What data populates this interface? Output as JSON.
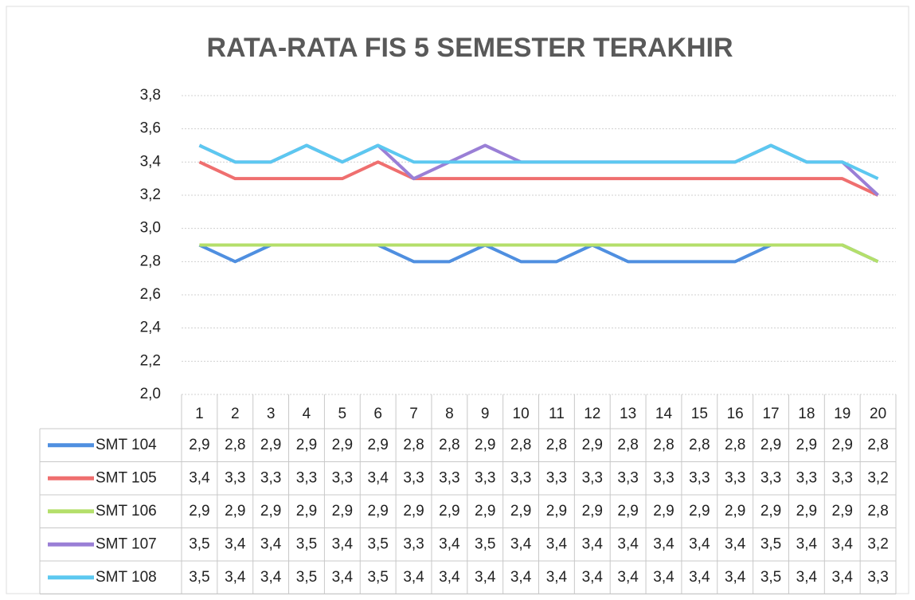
{
  "chart_data": {
    "type": "line",
    "title": "RATA-RATA FIS 5 SEMESTER TERAKHIR",
    "categories": [
      "1",
      "2",
      "3",
      "4",
      "5",
      "6",
      "7",
      "8",
      "9",
      "10",
      "11",
      "12",
      "13",
      "14",
      "15",
      "16",
      "17",
      "18",
      "19",
      "20"
    ],
    "series": [
      {
        "name": "SMT 104",
        "color": "#4f8fe0",
        "values": [
          2.9,
          2.8,
          2.9,
          2.9,
          2.9,
          2.9,
          2.8,
          2.8,
          2.9,
          2.8,
          2.8,
          2.9,
          2.8,
          2.8,
          2.8,
          2.8,
          2.9,
          2.9,
          2.9,
          2.8
        ],
        "value_labels": [
          "2,9",
          "2,8",
          "2,9",
          "2,9",
          "2,9",
          "2,9",
          "2,8",
          "2,8",
          "2,9",
          "2,8",
          "2,8",
          "2,9",
          "2,8",
          "2,8",
          "2,8",
          "2,8",
          "2,9",
          "2,9",
          "2,9",
          "2,8"
        ]
      },
      {
        "name": "SMT 105",
        "color": "#ef6f6f",
        "values": [
          3.4,
          3.3,
          3.3,
          3.3,
          3.3,
          3.4,
          3.3,
          3.3,
          3.3,
          3.3,
          3.3,
          3.3,
          3.3,
          3.3,
          3.3,
          3.3,
          3.3,
          3.3,
          3.3,
          3.2
        ],
        "value_labels": [
          "3,4",
          "3,3",
          "3,3",
          "3,3",
          "3,3",
          "3,4",
          "3,3",
          "3,3",
          "3,3",
          "3,3",
          "3,3",
          "3,3",
          "3,3",
          "3,3",
          "3,3",
          "3,3",
          "3,3",
          "3,3",
          "3,3",
          "3,2"
        ]
      },
      {
        "name": "SMT 106",
        "color": "#b4df6a",
        "values": [
          2.9,
          2.9,
          2.9,
          2.9,
          2.9,
          2.9,
          2.9,
          2.9,
          2.9,
          2.9,
          2.9,
          2.9,
          2.9,
          2.9,
          2.9,
          2.9,
          2.9,
          2.9,
          2.9,
          2.8
        ],
        "value_labels": [
          "2,9",
          "2,9",
          "2,9",
          "2,9",
          "2,9",
          "2,9",
          "2,9",
          "2,9",
          "2,9",
          "2,9",
          "2,9",
          "2,9",
          "2,9",
          "2,9",
          "2,9",
          "2,9",
          "2,9",
          "2,9",
          "2,9",
          "2,8"
        ]
      },
      {
        "name": "SMT 107",
        "color": "#9a7fd6",
        "values": [
          3.5,
          3.4,
          3.4,
          3.5,
          3.4,
          3.5,
          3.3,
          3.4,
          3.5,
          3.4,
          3.4,
          3.4,
          3.4,
          3.4,
          3.4,
          3.4,
          3.5,
          3.4,
          3.4,
          3.2
        ],
        "value_labels": [
          "3,5",
          "3,4",
          "3,4",
          "3,5",
          "3,4",
          "3,5",
          "3,3",
          "3,4",
          "3,5",
          "3,4",
          "3,4",
          "3,4",
          "3,4",
          "3,4",
          "3,4",
          "3,4",
          "3,5",
          "3,4",
          "3,4",
          "3,2"
        ]
      },
      {
        "name": "SMT 108",
        "color": "#5cc8f0",
        "values": [
          3.5,
          3.4,
          3.4,
          3.5,
          3.4,
          3.5,
          3.4,
          3.4,
          3.4,
          3.4,
          3.4,
          3.4,
          3.4,
          3.4,
          3.4,
          3.4,
          3.5,
          3.4,
          3.4,
          3.3
        ],
        "value_labels": [
          "3,5",
          "3,4",
          "3,4",
          "3,5",
          "3,4",
          "3,5",
          "3,4",
          "3,4",
          "3,4",
          "3,4",
          "3,4",
          "3,4",
          "3,4",
          "3,4",
          "3,4",
          "3,4",
          "3,5",
          "3,4",
          "3,4",
          "3,3"
        ]
      }
    ],
    "ylim": [
      2.0,
      3.8
    ],
    "yticks": [
      {
        "value": 2.0,
        "label": "2,0"
      },
      {
        "value": 2.2,
        "label": "2,2"
      },
      {
        "value": 2.4,
        "label": "2,4"
      },
      {
        "value": 2.6,
        "label": "2,6"
      },
      {
        "value": 2.8,
        "label": "2,8"
      },
      {
        "value": 3.0,
        "label": "3,0"
      },
      {
        "value": 3.2,
        "label": "3,2"
      },
      {
        "value": 3.4,
        "label": "3,4"
      },
      {
        "value": 3.6,
        "label": "3,6"
      },
      {
        "value": 3.8,
        "label": "3,8"
      }
    ],
    "grid": true
  }
}
